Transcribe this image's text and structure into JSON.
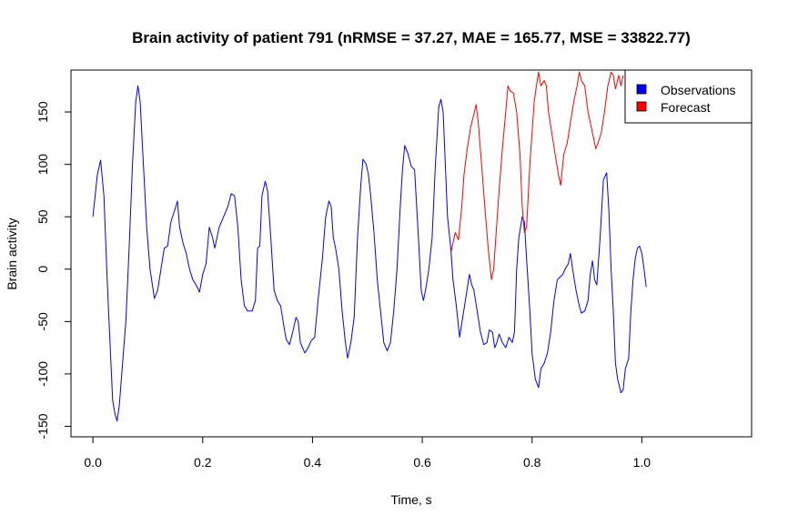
{
  "chart_data": {
    "type": "line",
    "title": "Brain activity of patient 791 (nRMSE = 37.27, MAE = 165.77, MSE = 33822.77)",
    "xlabel": "Time, s",
    "ylabel": "Brain activity",
    "xlim": [
      -0.04,
      1.2
    ],
    "ylim": [
      -160,
      190
    ],
    "x_ticks": [
      0.0,
      0.2,
      0.4,
      0.6,
      0.8,
      1.0
    ],
    "x_tick_labels": [
      "0.0",
      "0.2",
      "0.4",
      "0.6",
      "0.8",
      "1.0"
    ],
    "y_ticks": [
      -150,
      -100,
      -50,
      0,
      50,
      100,
      150
    ],
    "y_tick_labels": [
      "-150",
      "-100",
      "-50",
      "0",
      "50",
      "100",
      "150"
    ],
    "grid": false,
    "legend_position": "top-right",
    "series": [
      {
        "name": "Observations",
        "color": "#0000ff",
        "points": [
          [
            0.0,
            50
          ],
          [
            0.008,
            90
          ],
          [
            0.014,
            104
          ],
          [
            0.02,
            70
          ],
          [
            0.026,
            -10
          ],
          [
            0.032,
            -80
          ],
          [
            0.036,
            -125
          ],
          [
            0.04,
            -138
          ],
          [
            0.044,
            -145
          ],
          [
            0.048,
            -130
          ],
          [
            0.054,
            -90
          ],
          [
            0.06,
            -50
          ],
          [
            0.066,
            20
          ],
          [
            0.072,
            100
          ],
          [
            0.078,
            160
          ],
          [
            0.082,
            175
          ],
          [
            0.086,
            160
          ],
          [
            0.092,
            100
          ],
          [
            0.098,
            40
          ],
          [
            0.104,
            0
          ],
          [
            0.112,
            -28
          ],
          [
            0.118,
            -20
          ],
          [
            0.124,
            0
          ],
          [
            0.13,
            20
          ],
          [
            0.136,
            22
          ],
          [
            0.142,
            45
          ],
          [
            0.15,
            58
          ],
          [
            0.154,
            65
          ],
          [
            0.158,
            40
          ],
          [
            0.164,
            25
          ],
          [
            0.17,
            15
          ],
          [
            0.176,
            0
          ],
          [
            0.182,
            -10
          ],
          [
            0.188,
            -15
          ],
          [
            0.194,
            -22
          ],
          [
            0.2,
            -5
          ],
          [
            0.206,
            5
          ],
          [
            0.212,
            40
          ],
          [
            0.218,
            30
          ],
          [
            0.222,
            20
          ],
          [
            0.23,
            40
          ],
          [
            0.238,
            50
          ],
          [
            0.246,
            60
          ],
          [
            0.252,
            72
          ],
          [
            0.258,
            70
          ],
          [
            0.264,
            40
          ],
          [
            0.27,
            -10
          ],
          [
            0.276,
            -35
          ],
          [
            0.282,
            -40
          ],
          [
            0.29,
            -40
          ],
          [
            0.296,
            -30
          ],
          [
            0.3,
            20
          ],
          [
            0.304,
            22
          ],
          [
            0.308,
            70
          ],
          [
            0.314,
            84
          ],
          [
            0.318,
            75
          ],
          [
            0.324,
            30
          ],
          [
            0.33,
            -20
          ],
          [
            0.336,
            -30
          ],
          [
            0.342,
            -35
          ],
          [
            0.348,
            -55
          ],
          [
            0.352,
            -67
          ],
          [
            0.358,
            -72
          ],
          [
            0.364,
            -60
          ],
          [
            0.37,
            -46
          ],
          [
            0.374,
            -50
          ],
          [
            0.378,
            -70
          ],
          [
            0.386,
            -80
          ],
          [
            0.392,
            -75
          ],
          [
            0.398,
            -68
          ],
          [
            0.404,
            -65
          ],
          [
            0.41,
            -30
          ],
          [
            0.418,
            10
          ],
          [
            0.424,
            50
          ],
          [
            0.43,
            65
          ],
          [
            0.434,
            60
          ],
          [
            0.438,
            30
          ],
          [
            0.442,
            20
          ],
          [
            0.448,
            0
          ],
          [
            0.454,
            -40
          ],
          [
            0.46,
            -70
          ],
          [
            0.464,
            -85
          ],
          [
            0.47,
            -70
          ],
          [
            0.476,
            -45
          ],
          [
            0.482,
            30
          ],
          [
            0.488,
            80
          ],
          [
            0.492,
            105
          ],
          [
            0.498,
            100
          ],
          [
            0.502,
            90
          ],
          [
            0.506,
            70
          ],
          [
            0.512,
            35
          ],
          [
            0.518,
            -10
          ],
          [
            0.524,
            -40
          ],
          [
            0.53,
            -70
          ],
          [
            0.536,
            -78
          ],
          [
            0.542,
            -70
          ],
          [
            0.548,
            -40
          ],
          [
            0.554,
            0
          ],
          [
            0.56,
            60
          ],
          [
            0.564,
            95
          ],
          [
            0.568,
            118
          ],
          [
            0.574,
            110
          ],
          [
            0.58,
            98
          ],
          [
            0.586,
            95
          ],
          [
            0.592,
            40
          ],
          [
            0.598,
            -20
          ],
          [
            0.602,
            -30
          ],
          [
            0.606,
            -20
          ],
          [
            0.612,
            0
          ],
          [
            0.618,
            30
          ],
          [
            0.624,
            100
          ],
          [
            0.63,
            155
          ],
          [
            0.634,
            162
          ],
          [
            0.638,
            150
          ],
          [
            0.642,
            100
          ],
          [
            0.646,
            50
          ],
          [
            0.652,
            20
          ],
          [
            0.656,
            -10
          ],
          [
            0.662,
            -35
          ],
          [
            0.668,
            -65
          ],
          [
            0.674,
            -45
          ],
          [
            0.68,
            -25
          ],
          [
            0.686,
            -5
          ],
          [
            0.69,
            -15
          ],
          [
            0.694,
            -20
          ],
          [
            0.7,
            -40
          ],
          [
            0.706,
            -60
          ],
          [
            0.712,
            -72
          ],
          [
            0.718,
            -70
          ],
          [
            0.722,
            -58
          ],
          [
            0.728,
            -60
          ],
          [
            0.732,
            -75
          ],
          [
            0.736,
            -70
          ],
          [
            0.74,
            -62
          ],
          [
            0.746,
            -70
          ],
          [
            0.752,
            -75
          ],
          [
            0.758,
            -65
          ],
          [
            0.764,
            -70
          ],
          [
            0.768,
            -60
          ],
          [
            0.772,
            0
          ],
          [
            0.776,
            30
          ],
          [
            0.782,
            50
          ],
          [
            0.786,
            45
          ],
          [
            0.79,
            10
          ],
          [
            0.796,
            -40
          ],
          [
            0.8,
            -80
          ],
          [
            0.806,
            -105
          ],
          [
            0.812,
            -113
          ],
          [
            0.816,
            -95
          ],
          [
            0.822,
            -90
          ],
          [
            0.828,
            -80
          ],
          [
            0.834,
            -60
          ],
          [
            0.84,
            -30
          ],
          [
            0.846,
            -10
          ],
          [
            0.85,
            -8
          ],
          [
            0.856,
            -5
          ],
          [
            0.86,
            0
          ],
          [
            0.866,
            5
          ],
          [
            0.87,
            15
          ],
          [
            0.874,
            0
          ],
          [
            0.88,
            -20
          ],
          [
            0.886,
            -35
          ],
          [
            0.89,
            -42
          ],
          [
            0.896,
            -40
          ],
          [
            0.902,
            -30
          ],
          [
            0.906,
            -5
          ],
          [
            0.91,
            8
          ],
          [
            0.914,
            -10
          ],
          [
            0.918,
            -15
          ],
          [
            0.924,
            30
          ],
          [
            0.93,
            85
          ],
          [
            0.936,
            92
          ],
          [
            0.94,
            55
          ],
          [
            0.944,
            0
          ],
          [
            0.948,
            -40
          ],
          [
            0.952,
            -90
          ],
          [
            0.956,
            -105
          ],
          [
            0.962,
            -118
          ],
          [
            0.966,
            -115
          ],
          [
            0.97,
            -95
          ],
          [
            0.976,
            -85
          ],
          [
            0.98,
            -40
          ],
          [
            0.984,
            -10
          ],
          [
            0.988,
            10
          ],
          [
            0.992,
            20
          ],
          [
            0.996,
            22
          ],
          [
            1.0,
            15
          ],
          [
            1.004,
            0
          ],
          [
            1.008,
            -17
          ]
        ]
      },
      {
        "name": "Forecast",
        "color": "#ff0000",
        "points": [
          [
            0.652,
            15
          ],
          [
            0.656,
            25
          ],
          [
            0.66,
            35
          ],
          [
            0.666,
            28
          ],
          [
            0.672,
            60
          ],
          [
            0.676,
            90
          ],
          [
            0.682,
            115
          ],
          [
            0.688,
            135
          ],
          [
            0.694,
            148
          ],
          [
            0.698,
            157
          ],
          [
            0.702,
            140
          ],
          [
            0.708,
            100
          ],
          [
            0.714,
            60
          ],
          [
            0.72,
            20
          ],
          [
            0.726,
            -10
          ],
          [
            0.73,
            0
          ],
          [
            0.734,
            30
          ],
          [
            0.74,
            75
          ],
          [
            0.746,
            115
          ],
          [
            0.752,
            150
          ],
          [
            0.756,
            175
          ],
          [
            0.76,
            170
          ],
          [
            0.766,
            168
          ],
          [
            0.772,
            150
          ],
          [
            0.778,
            110
          ],
          [
            0.782,
            60
          ],
          [
            0.786,
            35
          ],
          [
            0.79,
            40
          ],
          [
            0.796,
            100
          ],
          [
            0.8,
            130
          ],
          [
            0.804,
            160
          ],
          [
            0.808,
            175
          ],
          [
            0.812,
            188
          ],
          [
            0.816,
            175
          ],
          [
            0.822,
            180
          ],
          [
            0.826,
            175
          ],
          [
            0.83,
            150
          ],
          [
            0.836,
            130
          ],
          [
            0.842,
            110
          ],
          [
            0.848,
            90
          ],
          [
            0.852,
            80
          ],
          [
            0.858,
            110
          ],
          [
            0.864,
            120
          ],
          [
            0.87,
            140
          ],
          [
            0.876,
            160
          ],
          [
            0.882,
            175
          ],
          [
            0.886,
            188
          ],
          [
            0.89,
            180
          ],
          [
            0.896,
            175
          ],
          [
            0.902,
            150
          ],
          [
            0.906,
            140
          ],
          [
            0.91,
            130
          ],
          [
            0.916,
            115
          ],
          [
            0.92,
            120
          ],
          [
            0.926,
            130
          ],
          [
            0.932,
            150
          ],
          [
            0.938,
            175
          ],
          [
            0.944,
            188
          ],
          [
            0.948,
            185
          ],
          [
            0.952,
            172
          ],
          [
            0.958,
            185
          ],
          [
            0.962,
            175
          ],
          [
            0.966,
            185
          ]
        ]
      }
    ]
  }
}
